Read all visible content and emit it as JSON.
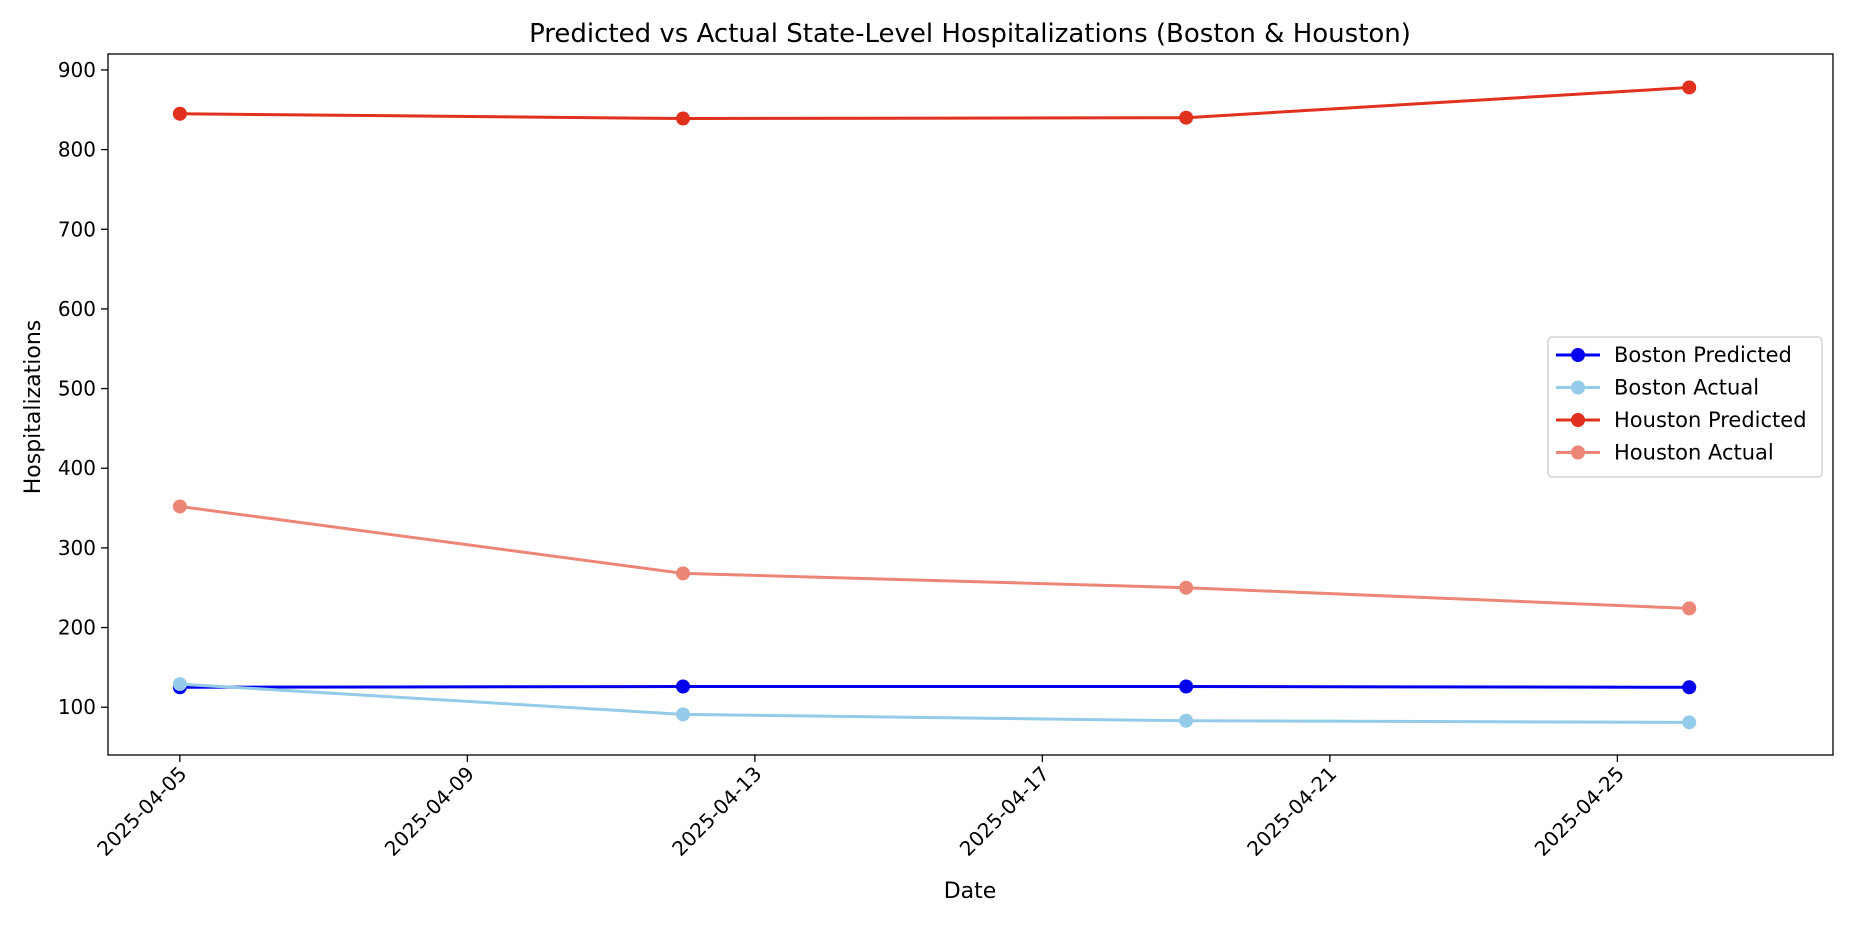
{
  "chart_data": {
    "type": "line",
    "title": "Predicted vs Actual State-Level Hospitalizations (Boston & Houston)",
    "xlabel": "Date",
    "ylabel": "Hospitalizations",
    "x": [
      "2025-04-05",
      "2025-04-12",
      "2025-04-19",
      "2025-04-26"
    ],
    "xlim": [
      "2025-04-04",
      "2025-04-28"
    ],
    "x_ticks": [
      "2025-04-05",
      "2025-04-09",
      "2025-04-13",
      "2025-04-17",
      "2025-04-21",
      "2025-04-25"
    ],
    "ylim": [
      40,
      920
    ],
    "y_ticks": [
      100,
      200,
      300,
      400,
      500,
      600,
      700,
      800,
      900
    ],
    "grid": false,
    "legend_position": "center-right",
    "series": [
      {
        "name": "Boston Predicted",
        "color": "#0000ee",
        "values": [
          125,
          126,
          126,
          125
        ]
      },
      {
        "name": "Boston Actual",
        "color": "#94cbe8",
        "values": [
          129,
          91,
          83,
          81
        ]
      },
      {
        "name": "Houston Predicted",
        "color": "#e0301e",
        "values": [
          845,
          839,
          840,
          878
        ]
      },
      {
        "name": "Houston Actual",
        "color": "#ec8777",
        "values": [
          352,
          268,
          250,
          224
        ]
      }
    ]
  }
}
